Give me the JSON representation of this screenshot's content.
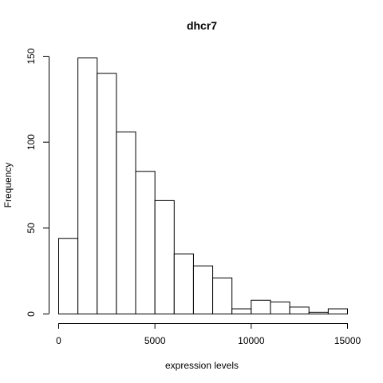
{
  "chart_data": {
    "type": "bar",
    "title": "dhcr7",
    "xlabel": "expression levels",
    "ylabel": "Frequency",
    "bin_edges": [
      0,
      1000,
      2000,
      3000,
      4000,
      5000,
      6000,
      7000,
      8000,
      9000,
      10000,
      11000,
      12000,
      13000,
      14000,
      15000
    ],
    "values": [
      44,
      149,
      140,
      106,
      83,
      66,
      35,
      28,
      21,
      3,
      8,
      7,
      4,
      1,
      3
    ],
    "xlim": [
      0,
      15000
    ],
    "ylim": [
      0,
      150
    ],
    "x_ticks": [
      0,
      5000,
      10000,
      15000
    ],
    "x_tick_labels": [
      "0",
      "5000",
      "10000",
      "15000"
    ],
    "y_ticks": [
      0,
      50,
      100,
      150
    ],
    "y_tick_labels": [
      "0",
      "50",
      "100",
      "150"
    ],
    "grid": false,
    "bar_fill": "#ffffff",
    "bar_stroke": "#000000"
  }
}
